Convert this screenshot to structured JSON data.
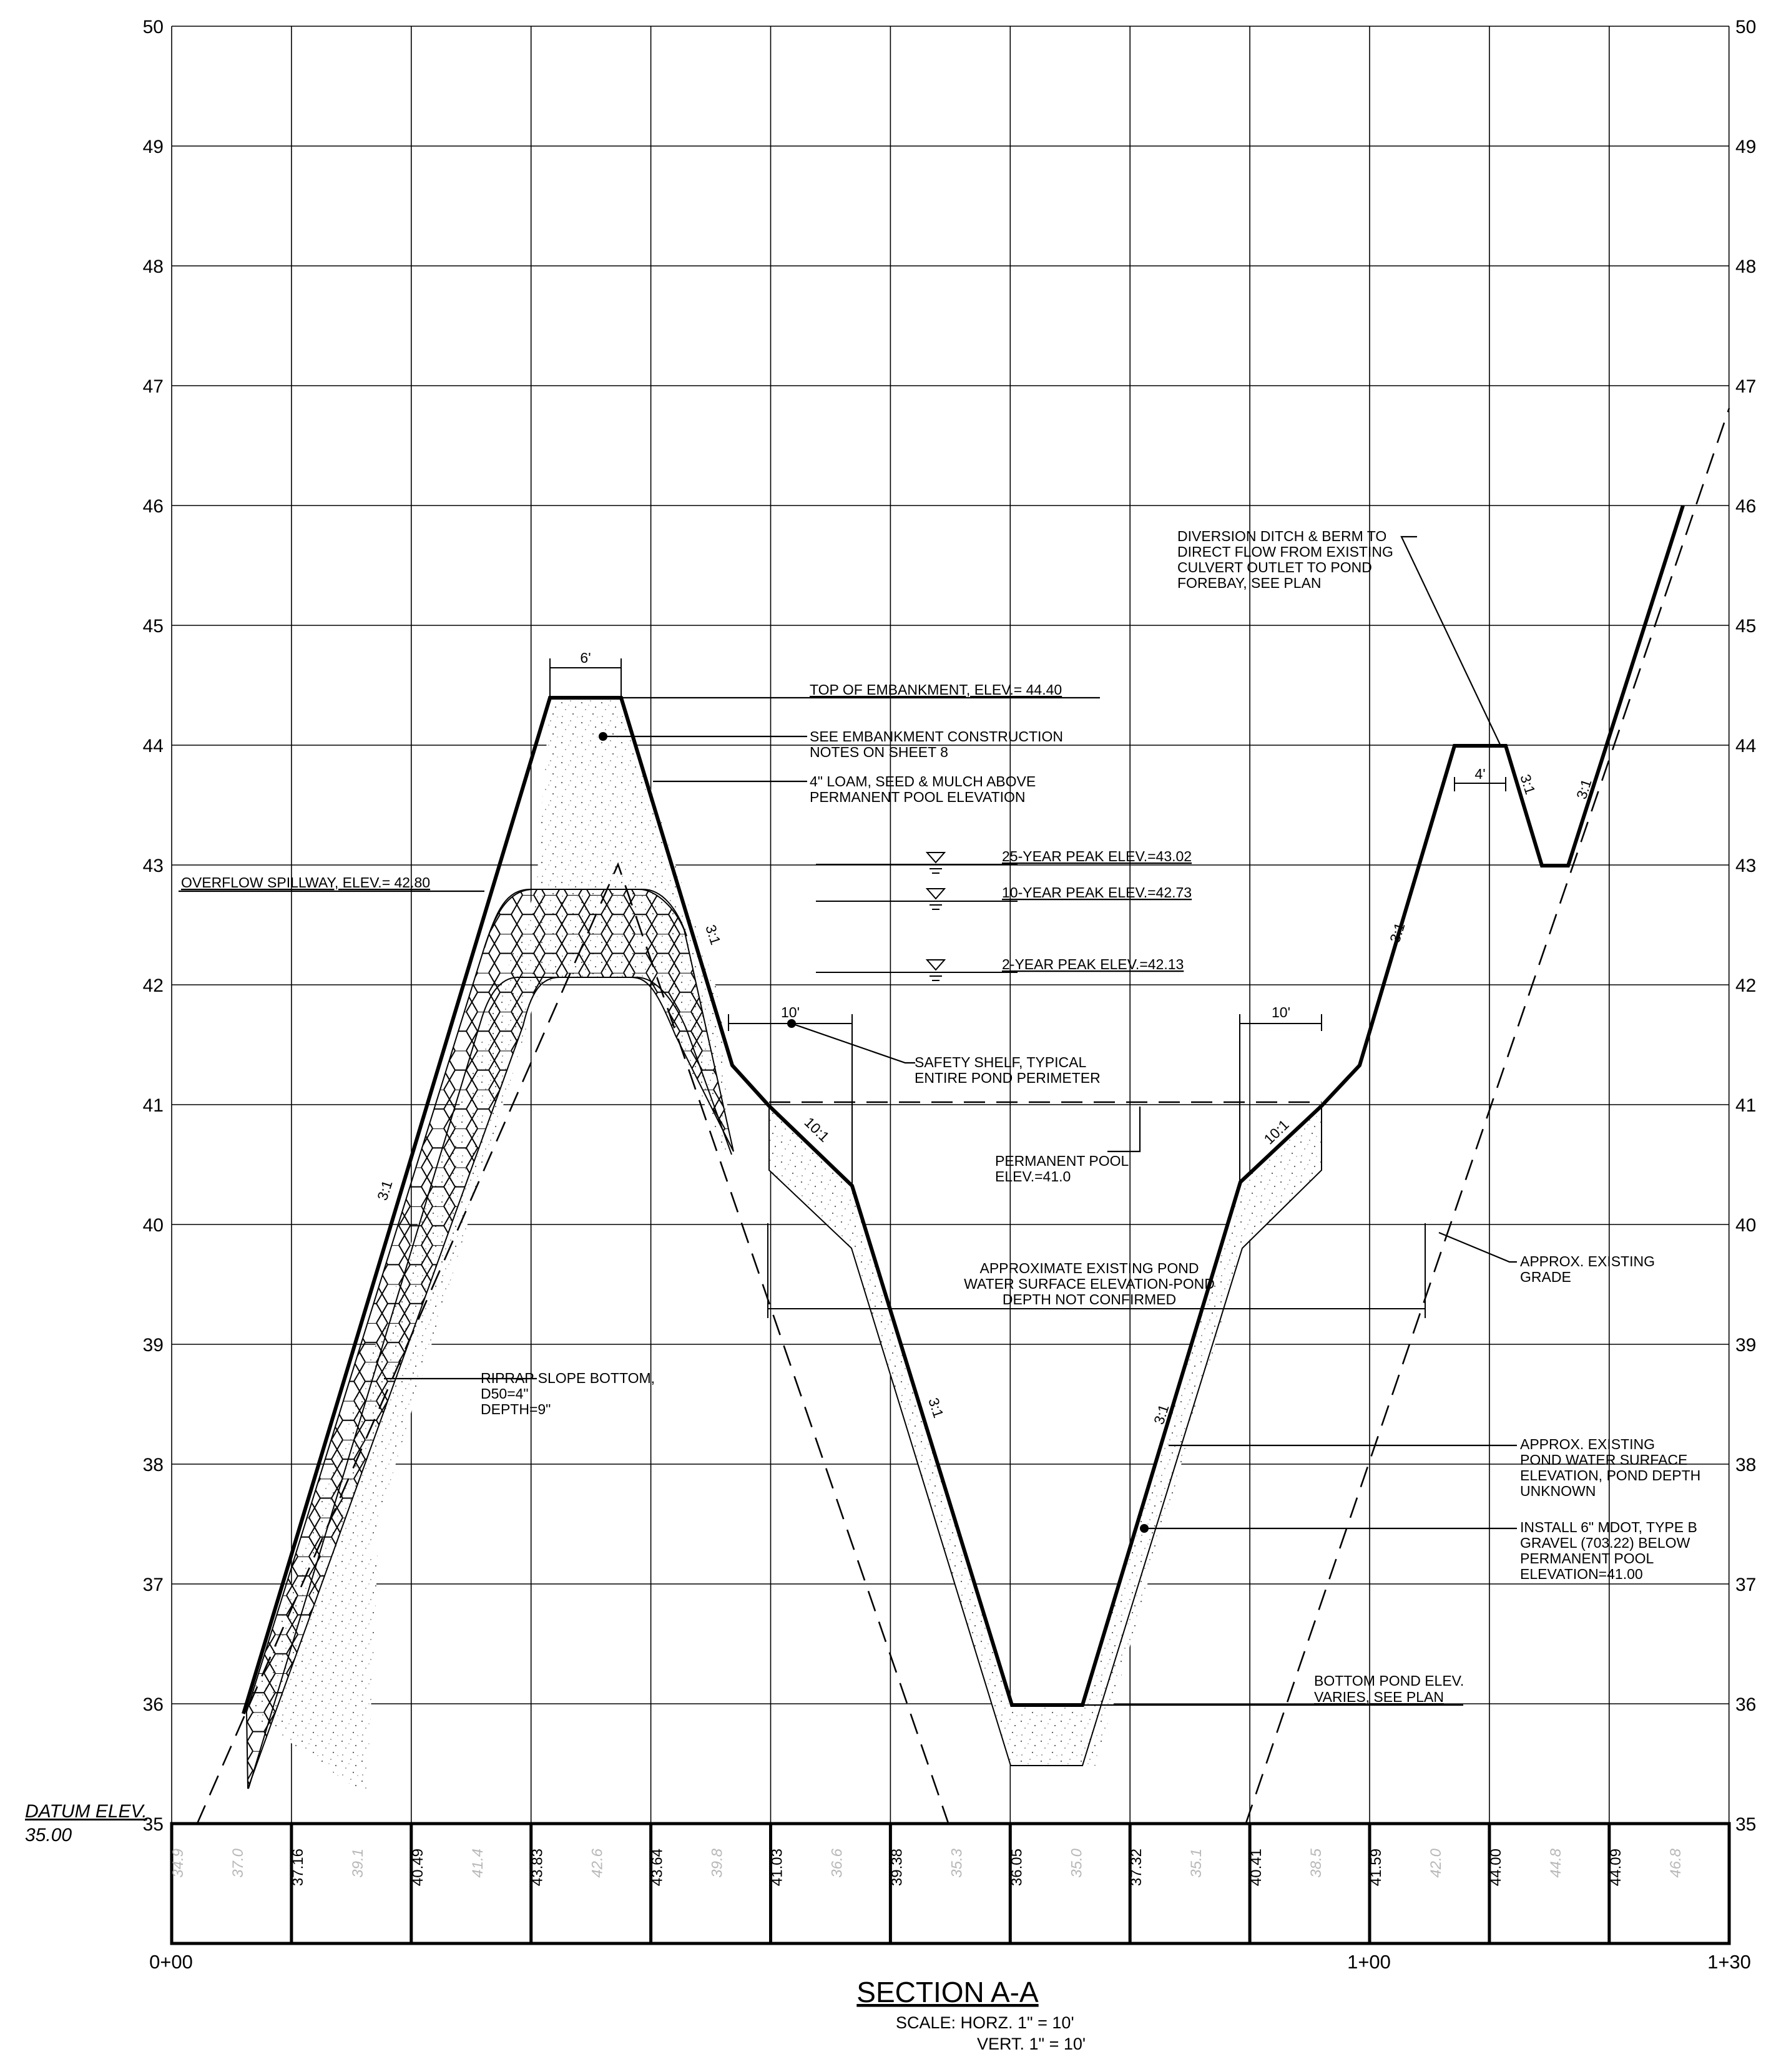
{
  "sheet": {
    "left_axis_labels": [
      "50",
      "49",
      "48",
      "47",
      "46",
      "45",
      "44",
      "43",
      "42",
      "41",
      "40",
      "39",
      "38",
      "37",
      "36",
      "35"
    ],
    "right_axis_labels": [
      "50",
      "49",
      "48",
      "47",
      "46",
      "45",
      "44",
      "43",
      "42",
      "41",
      "40",
      "39",
      "38",
      "37",
      "36",
      "35"
    ],
    "datum_label": "DATUM ELEV.",
    "datum_value": "35.00",
    "station_labels": [
      "0+00",
      "1+00",
      "1+30"
    ],
    "table_values": [
      {
        "label": "34.9",
        "faint": true
      },
      {
        "label": "37.0",
        "faint": true
      },
      {
        "label": "37.16",
        "faint": false
      },
      {
        "label": "39.1",
        "faint": true
      },
      {
        "label": "40.49",
        "faint": false
      },
      {
        "label": "41.4",
        "faint": true
      },
      {
        "label": "43.83",
        "faint": false
      },
      {
        "label": "42.6",
        "faint": true
      },
      {
        "label": "43.64",
        "faint": false
      },
      {
        "label": "39.8",
        "faint": true
      },
      {
        "label": "41.03",
        "faint": false
      },
      {
        "label": "36.6",
        "faint": true
      },
      {
        "label": "39.38",
        "faint": false
      },
      {
        "label": "35.3",
        "faint": true
      },
      {
        "label": "36.05",
        "faint": false
      },
      {
        "label": "35.0",
        "faint": true
      },
      {
        "label": "37.32",
        "faint": false
      },
      {
        "label": "35.1",
        "faint": true
      },
      {
        "label": "40.41",
        "faint": false
      },
      {
        "label": "38.5",
        "faint": true
      },
      {
        "label": "41.59",
        "faint": false
      },
      {
        "label": "42.0",
        "faint": true
      },
      {
        "label": "44.00",
        "faint": false
      },
      {
        "label": "44.8",
        "faint": true
      },
      {
        "label": "44.09",
        "faint": false
      },
      {
        "label": "46.8",
        "faint": true
      }
    ],
    "title": "SECTION A-A",
    "scale_line1": "SCALE:  HORZ. 1\" = 10'",
    "scale_line2": "VERT. 1\" = 10'"
  },
  "callouts": {
    "top_width": "6'",
    "top_embankment": "TOP OF EMBANKMENT, ELEV.= 44.40",
    "embankment_notes_1": "SEE EMBANKMENT CONSTRUCTION",
    "embankment_notes_2": "NOTES ON SHEET 8",
    "loam_1": "4\" LOAM, SEED & MULCH ABOVE",
    "loam_2": "PERMANENT POOL ELEVATION",
    "overflow": "OVERFLOW SPILLWAY, ELEV.= 42.80",
    "peak_25": "25-YEAR PEAK ELEV.=43.02",
    "peak_10": "10-YEAR PEAK ELEV.=42.73",
    "peak_2": "2-YEAR PEAK ELEV.=42.13",
    "safety_1": "SAFETY SHELF, TYPICAL",
    "safety_2": "ENTIRE POND PERIMETER",
    "shelf_left": "10'",
    "shelf_right": "10'",
    "perm_pool_1": "PERMANENT POOL",
    "perm_pool_2": "ELEV.=41.0",
    "approx_surface_1": "APPROXIMATE EXISTING POND",
    "approx_surface_2": "WATER SURFACE ELEVATION-POND",
    "approx_surface_3": "DEPTH NOT CONFIRMED",
    "riprap_1": "RIPRAP SLOPE BOTTOM,",
    "riprap_2": "D50=4\"",
    "riprap_3": "DEPTH=9\"",
    "diversion_1": "DIVERSION DITCH & BERM TO",
    "diversion_2": "DIRECT FLOW FROM EXISTING",
    "diversion_3": "CULVERT OUTLET TO POND",
    "diversion_4": "FOREBAY, SEE PLAN",
    "berm_width": "4'",
    "existing_grade_1": "APPROX. EXISTING",
    "existing_grade_2": "GRADE",
    "existing_water_1": "APPROX. EXISTING",
    "existing_water_2": "POND WATER SURFACE",
    "existing_water_3": "ELEVATION, POND DEPTH",
    "existing_water_4": "UNKNOWN",
    "gravel_1": "INSTALL 6\" MDOT, TYPE B",
    "gravel_2": "GRAVEL (703.22) BELOW",
    "gravel_3": "PERMANENT POOL",
    "gravel_4": "ELEVATION=41.00",
    "bottom_1": "BOTTOM POND ELEV.",
    "bottom_2": "VARIES, SEE PLAN",
    "slope_3to1": "3:1",
    "slope_10to1": "10:1"
  }
}
